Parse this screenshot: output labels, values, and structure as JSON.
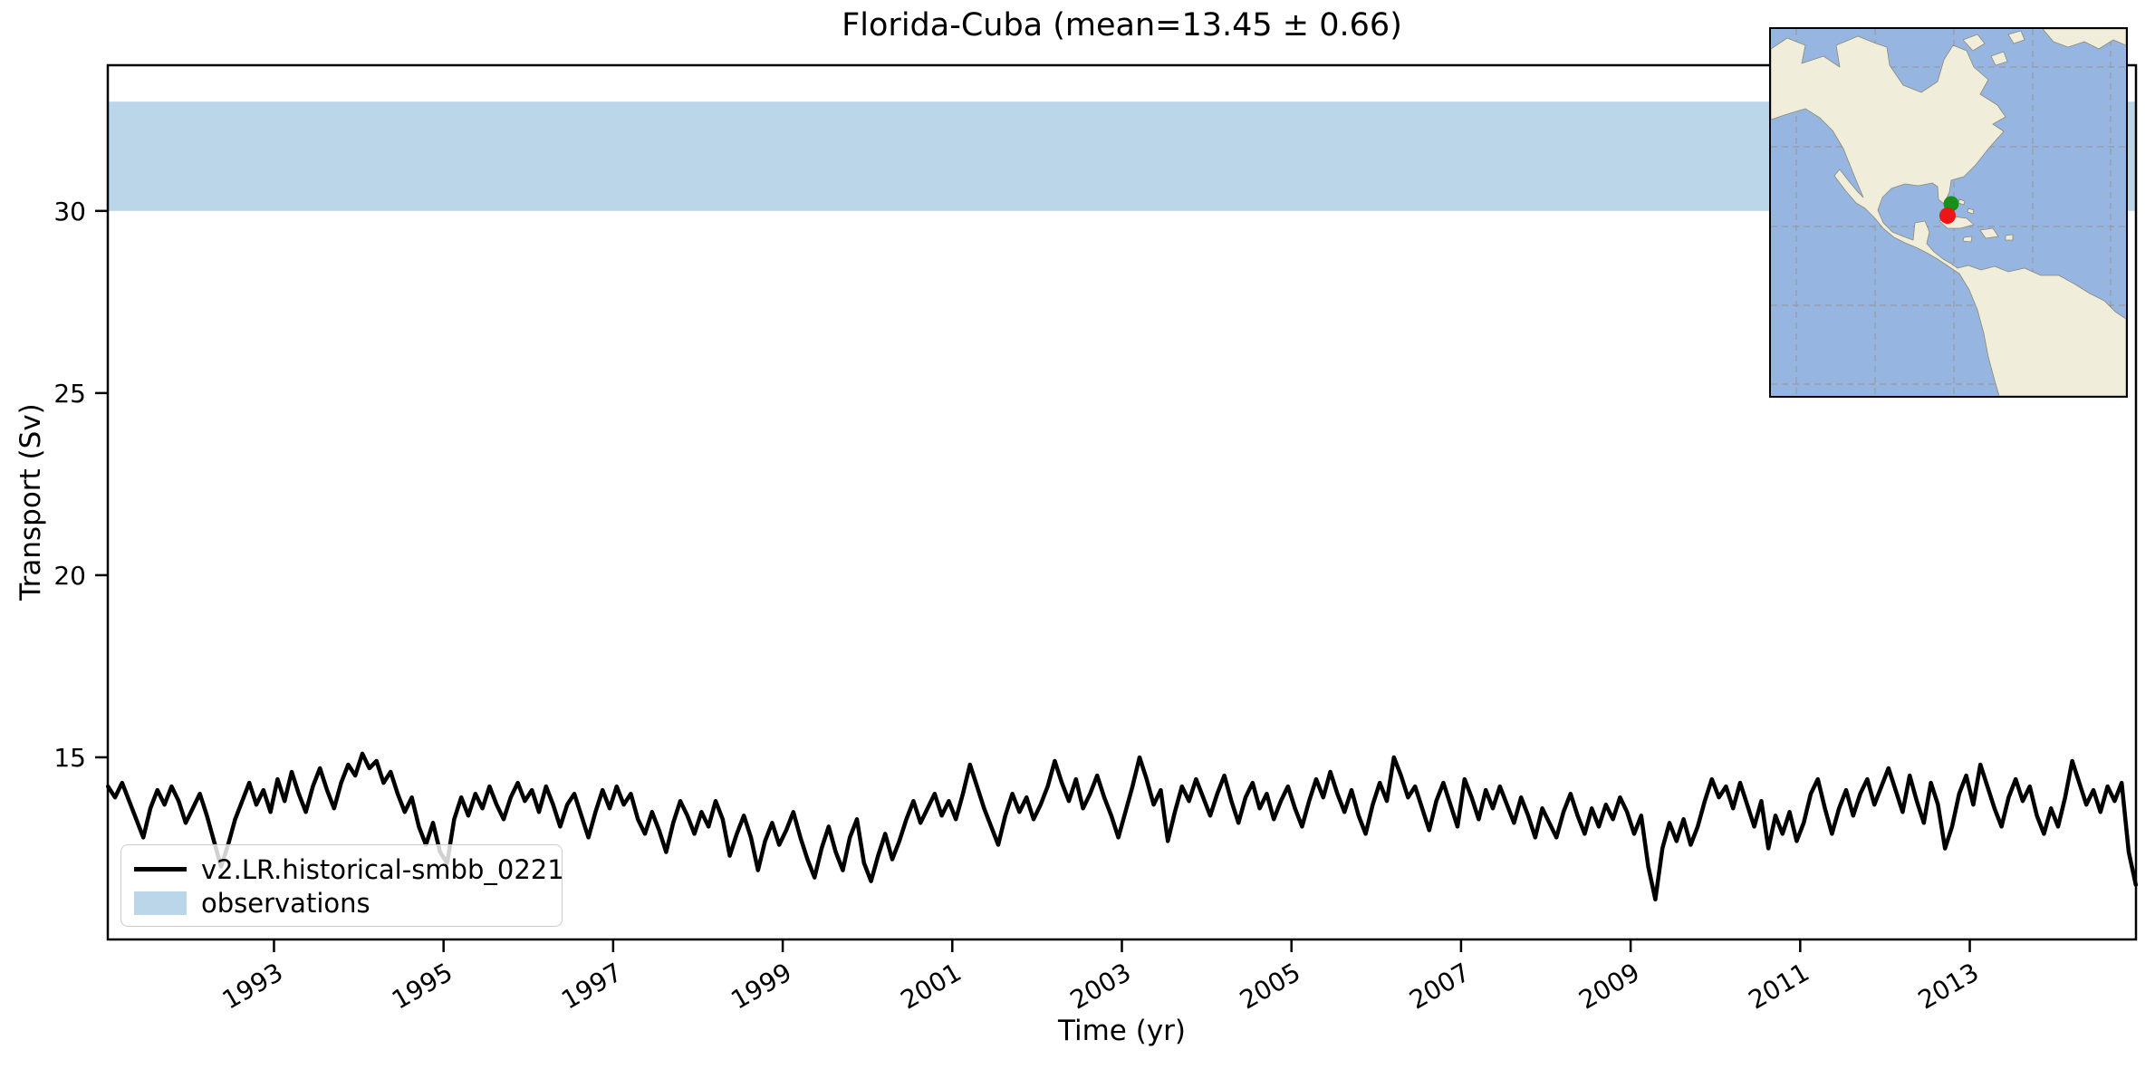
{
  "figure": {
    "title": "Florida-Cuba (mean=13.45 ± 0.66)"
  },
  "chart_data": {
    "type": "line",
    "title": "Florida-Cuba (mean=13.45 ± 0.66)",
    "xlabel": "Time (yr)",
    "ylabel": "Transport (Sv)",
    "xlim": [
      1991.04,
      2014.96
    ],
    "ylim": [
      10.0,
      34.0
    ],
    "xticks": [
      1993,
      1995,
      1997,
      1999,
      2001,
      2003,
      2005,
      2007,
      2009,
      2011,
      2013
    ],
    "yticks": [
      15,
      20,
      25,
      30
    ],
    "grid": false,
    "legend_position": "lower left",
    "x_tick_rotation_deg": 30,
    "observations_band": {
      "label": "observations",
      "color": "#bcd6e9",
      "ymin": 30.0,
      "ymax": 33.0
    },
    "series": [
      {
        "name": "v2.LR.historical-smbb_0221",
        "color": "#000000",
        "line_width": 4.5,
        "x_start_decimal_year": 1991.0417,
        "x_step_years": 0.083333,
        "values": [
          14.2,
          13.9,
          14.3,
          13.8,
          13.3,
          12.8,
          13.6,
          14.1,
          13.7,
          14.2,
          13.8,
          13.2,
          13.6,
          14.0,
          13.4,
          12.7,
          12.0,
          12.6,
          13.3,
          13.8,
          14.3,
          13.7,
          14.1,
          13.5,
          14.4,
          13.8,
          14.6,
          14.0,
          13.5,
          14.2,
          14.7,
          14.1,
          13.6,
          14.3,
          14.8,
          14.5,
          15.1,
          14.7,
          14.9,
          14.3,
          14.6,
          14.0,
          13.5,
          13.9,
          13.1,
          12.6,
          13.2,
          12.4,
          12.1,
          13.3,
          13.9,
          13.4,
          14.0,
          13.6,
          14.2,
          13.7,
          13.3,
          13.9,
          14.3,
          13.8,
          14.1,
          13.5,
          14.2,
          13.7,
          13.1,
          13.7,
          14.0,
          13.4,
          12.8,
          13.5,
          14.1,
          13.6,
          14.2,
          13.7,
          14.0,
          13.3,
          12.9,
          13.5,
          13.0,
          12.4,
          13.2,
          13.8,
          13.4,
          12.9,
          13.5,
          13.1,
          13.8,
          13.3,
          12.3,
          12.9,
          13.4,
          12.8,
          11.9,
          12.7,
          13.2,
          12.6,
          13.0,
          13.5,
          12.8,
          12.2,
          11.7,
          12.5,
          13.1,
          12.4,
          11.9,
          12.8,
          13.3,
          12.1,
          11.6,
          12.3,
          12.9,
          12.2,
          12.7,
          13.3,
          13.8,
          13.2,
          13.6,
          14.0,
          13.4,
          13.8,
          13.3,
          14.0,
          14.8,
          14.2,
          13.6,
          13.1,
          12.6,
          13.4,
          14.0,
          13.5,
          13.9,
          13.3,
          13.7,
          14.2,
          14.9,
          14.3,
          13.8,
          14.4,
          13.6,
          14.0,
          14.5,
          13.9,
          13.4,
          12.8,
          13.5,
          14.2,
          15.0,
          14.4,
          13.7,
          14.1,
          12.7,
          13.5,
          14.2,
          13.8,
          14.4,
          13.9,
          13.4,
          14.0,
          14.5,
          13.8,
          13.2,
          13.9,
          14.3,
          13.6,
          14.0,
          13.3,
          13.8,
          14.2,
          13.6,
          13.1,
          13.8,
          14.4,
          13.9,
          14.6,
          14.0,
          13.5,
          14.1,
          13.4,
          12.9,
          13.7,
          14.3,
          13.8,
          15.0,
          14.5,
          13.9,
          14.2,
          13.6,
          13.0,
          13.8,
          14.3,
          13.7,
          13.1,
          14.4,
          13.9,
          13.3,
          14.1,
          13.6,
          14.2,
          13.7,
          13.2,
          13.9,
          13.4,
          12.8,
          13.6,
          13.2,
          12.8,
          13.5,
          14.0,
          13.4,
          12.9,
          13.6,
          13.1,
          13.7,
          13.3,
          13.9,
          13.5,
          12.9,
          13.4,
          12.0,
          11.1,
          12.5,
          13.2,
          12.7,
          13.3,
          12.6,
          13.1,
          13.8,
          14.4,
          13.9,
          14.2,
          13.6,
          14.3,
          13.7,
          13.1,
          13.8,
          12.5,
          13.4,
          12.9,
          13.5,
          12.7,
          13.2,
          14.0,
          14.4,
          13.6,
          12.9,
          13.6,
          14.1,
          13.4,
          14.0,
          14.4,
          13.7,
          14.2,
          14.7,
          14.1,
          13.5,
          14.5,
          13.8,
          13.2,
          14.3,
          13.7,
          12.5,
          13.1,
          14.0,
          14.5,
          13.7,
          14.8,
          14.2,
          13.6,
          13.1,
          13.9,
          14.4,
          13.8,
          14.2,
          13.4,
          12.9,
          13.6,
          13.1,
          13.9,
          14.9,
          14.3,
          13.7,
          14.1,
          13.5,
          14.2,
          13.8,
          14.3,
          12.4,
          11.5
        ]
      }
    ]
  },
  "legend": {
    "entries": [
      {
        "label": "v2.LR.historical-smbb_0221",
        "swatch": "line",
        "color": "#000000"
      },
      {
        "label": "observations",
        "swatch": "patch",
        "color": "#bcd6e9"
      }
    ]
  },
  "inset_map": {
    "ocean_color": "#96b5e0",
    "land_color": "#f0eedb",
    "gridline_color": "#999999",
    "florida_point_color": "#18911b",
    "cuba_point_color": "#ed1515",
    "transect_color": "#000000"
  }
}
